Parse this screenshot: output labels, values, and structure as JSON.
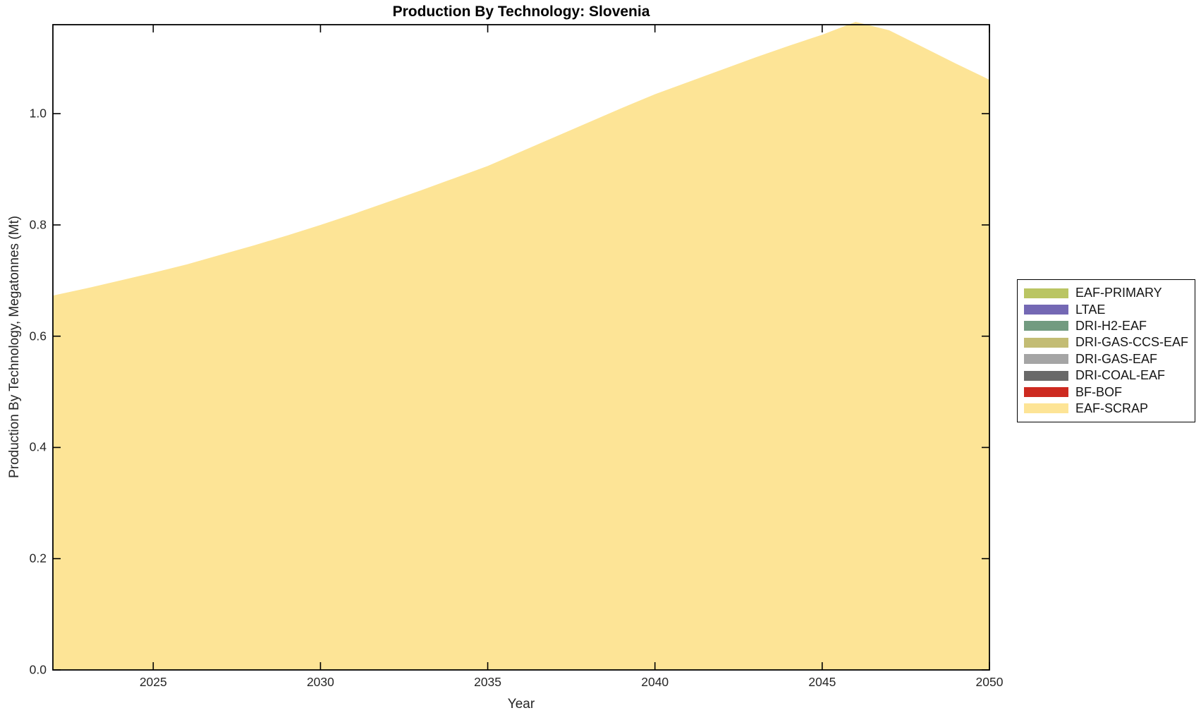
{
  "title": "Production By Technology: Slovenia",
  "axes": {
    "xlabel": "Year",
    "ylabel": "Production By Technology, Megatonnes (Mt)",
    "x_tick_labels": [
      "2025",
      "2030",
      "2035",
      "2040",
      "2045",
      "2050"
    ],
    "y_tick_labels": [
      "0.0",
      "0.2",
      "0.4",
      "0.6",
      "0.8",
      "1.0"
    ]
  },
  "legend": {
    "items": [
      {
        "label": "EAF-PRIMARY",
        "color": "#bac563"
      },
      {
        "label": "LTAE",
        "color": "#7468b4"
      },
      {
        "label": "DRI-H2-EAF",
        "color": "#729b80"
      },
      {
        "label": "DRI-GAS-CCS-EAF",
        "color": "#c3bc74"
      },
      {
        "label": "DRI-GAS-EAF",
        "color": "#a5a5a5"
      },
      {
        "label": "DRI-COAL-EAF",
        "color": "#696969"
      },
      {
        "label": "BF-BOF",
        "color": "#cd2a20"
      },
      {
        "label": "EAF-SCRAP",
        "color": "#fde496"
      }
    ]
  },
  "chart_data": {
    "type": "area",
    "stacked": true,
    "title": "Production By Technology: Slovenia",
    "xlabel": "Year",
    "ylabel": "Production By Technology, Megatonnes (Mt)",
    "xlim": [
      2022,
      2050
    ],
    "ylim": [
      0,
      1.16
    ],
    "x_ticks": [
      2025,
      2030,
      2035,
      2040,
      2045,
      2050
    ],
    "y_ticks": [
      0.0,
      0.2,
      0.4,
      0.6,
      0.8,
      1.0
    ],
    "grid": false,
    "legend_position": "outside-right",
    "x": [
      2022,
      2023,
      2024,
      2025,
      2026,
      2027,
      2028,
      2029,
      2030,
      2031,
      2032,
      2033,
      2034,
      2035,
      2036,
      2037,
      2038,
      2039,
      2040,
      2041,
      2042,
      2043,
      2044,
      2045,
      2046,
      2047,
      2048,
      2049,
      2050
    ],
    "series": [
      {
        "name": "EAF-PRIMARY",
        "color": "#bac563",
        "values": [
          0,
          0,
          0,
          0,
          0,
          0,
          0,
          0,
          0,
          0,
          0,
          0,
          0,
          0,
          0,
          0,
          0,
          0,
          0,
          0,
          0,
          0,
          0,
          0,
          0,
          0,
          0,
          0,
          0
        ]
      },
      {
        "name": "LTAE",
        "color": "#7468b4",
        "values": [
          0,
          0,
          0,
          0,
          0,
          0,
          0,
          0,
          0,
          0,
          0,
          0,
          0,
          0,
          0,
          0,
          0,
          0,
          0,
          0,
          0,
          0,
          0,
          0,
          0,
          0,
          0,
          0,
          0
        ]
      },
      {
        "name": "DRI-H2-EAF",
        "color": "#729b80",
        "values": [
          0,
          0,
          0,
          0,
          0,
          0,
          0,
          0,
          0,
          0,
          0,
          0,
          0,
          0,
          0,
          0,
          0,
          0,
          0,
          0,
          0,
          0,
          0,
          0,
          0,
          0,
          0,
          0,
          0
        ]
      },
      {
        "name": "DRI-GAS-CCS-EAF",
        "color": "#c3bc74",
        "values": [
          0,
          0,
          0,
          0,
          0,
          0,
          0,
          0,
          0,
          0,
          0,
          0,
          0,
          0,
          0,
          0,
          0,
          0,
          0,
          0,
          0,
          0,
          0,
          0,
          0,
          0,
          0,
          0,
          0
        ]
      },
      {
        "name": "DRI-GAS-EAF",
        "color": "#a5a5a5",
        "values": [
          0,
          0,
          0,
          0,
          0,
          0,
          0,
          0,
          0,
          0,
          0,
          0,
          0,
          0,
          0,
          0,
          0,
          0,
          0,
          0,
          0,
          0,
          0,
          0,
          0,
          0,
          0,
          0,
          0
        ]
      },
      {
        "name": "DRI-COAL-EAF",
        "color": "#696969",
        "values": [
          0,
          0,
          0,
          0,
          0,
          0,
          0,
          0,
          0,
          0,
          0,
          0,
          0,
          0,
          0,
          0,
          0,
          0,
          0,
          0,
          0,
          0,
          0,
          0,
          0,
          0,
          0,
          0,
          0
        ]
      },
      {
        "name": "BF-BOF",
        "color": "#cd2a20",
        "values": [
          0,
          0,
          0,
          0,
          0,
          0,
          0,
          0,
          0,
          0,
          0,
          0,
          0,
          0,
          0,
          0,
          0,
          0,
          0,
          0,
          0,
          0,
          0,
          0,
          0,
          0,
          0,
          0,
          0
        ]
      },
      {
        "name": "EAF-SCRAP",
        "color": "#fde496",
        "values": [
          0.673,
          0.686,
          0.7,
          0.714,
          0.729,
          0.746,
          0.763,
          0.781,
          0.8,
          0.82,
          0.841,
          0.862,
          0.884,
          0.906,
          0.932,
          0.958,
          0.984,
          1.01,
          1.035,
          1.057,
          1.079,
          1.101,
          1.122,
          1.142,
          1.165,
          1.15,
          1.12,
          1.09,
          1.061
        ]
      }
    ]
  }
}
